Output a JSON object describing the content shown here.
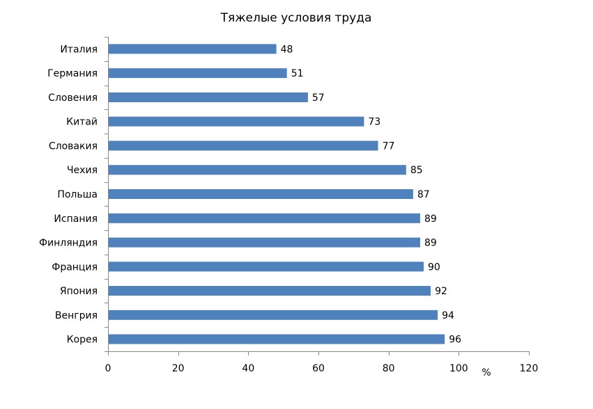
{
  "chart_data": {
    "type": "bar",
    "orientation": "horizontal",
    "title": "Тяжелые условия труда",
    "xlabel": "%",
    "ylabel": "",
    "categories": [
      "Италия",
      "Германия",
      "Словения",
      "Китай",
      "Словакия",
      "Чехия",
      "Польша",
      "Испания",
      "Финляндия",
      "Франция",
      "Япония",
      "Венгрия",
      "Корея"
    ],
    "values": [
      48,
      51,
      57,
      73,
      77,
      85,
      87,
      89,
      89,
      90,
      92,
      94,
      96
    ],
    "xlim": [
      0,
      120
    ],
    "x_ticks": [
      0,
      20,
      40,
      60,
      80,
      100,
      120
    ],
    "data_labels": true,
    "grid": false,
    "legend": "none",
    "bar_color": "#4F81BD"
  }
}
